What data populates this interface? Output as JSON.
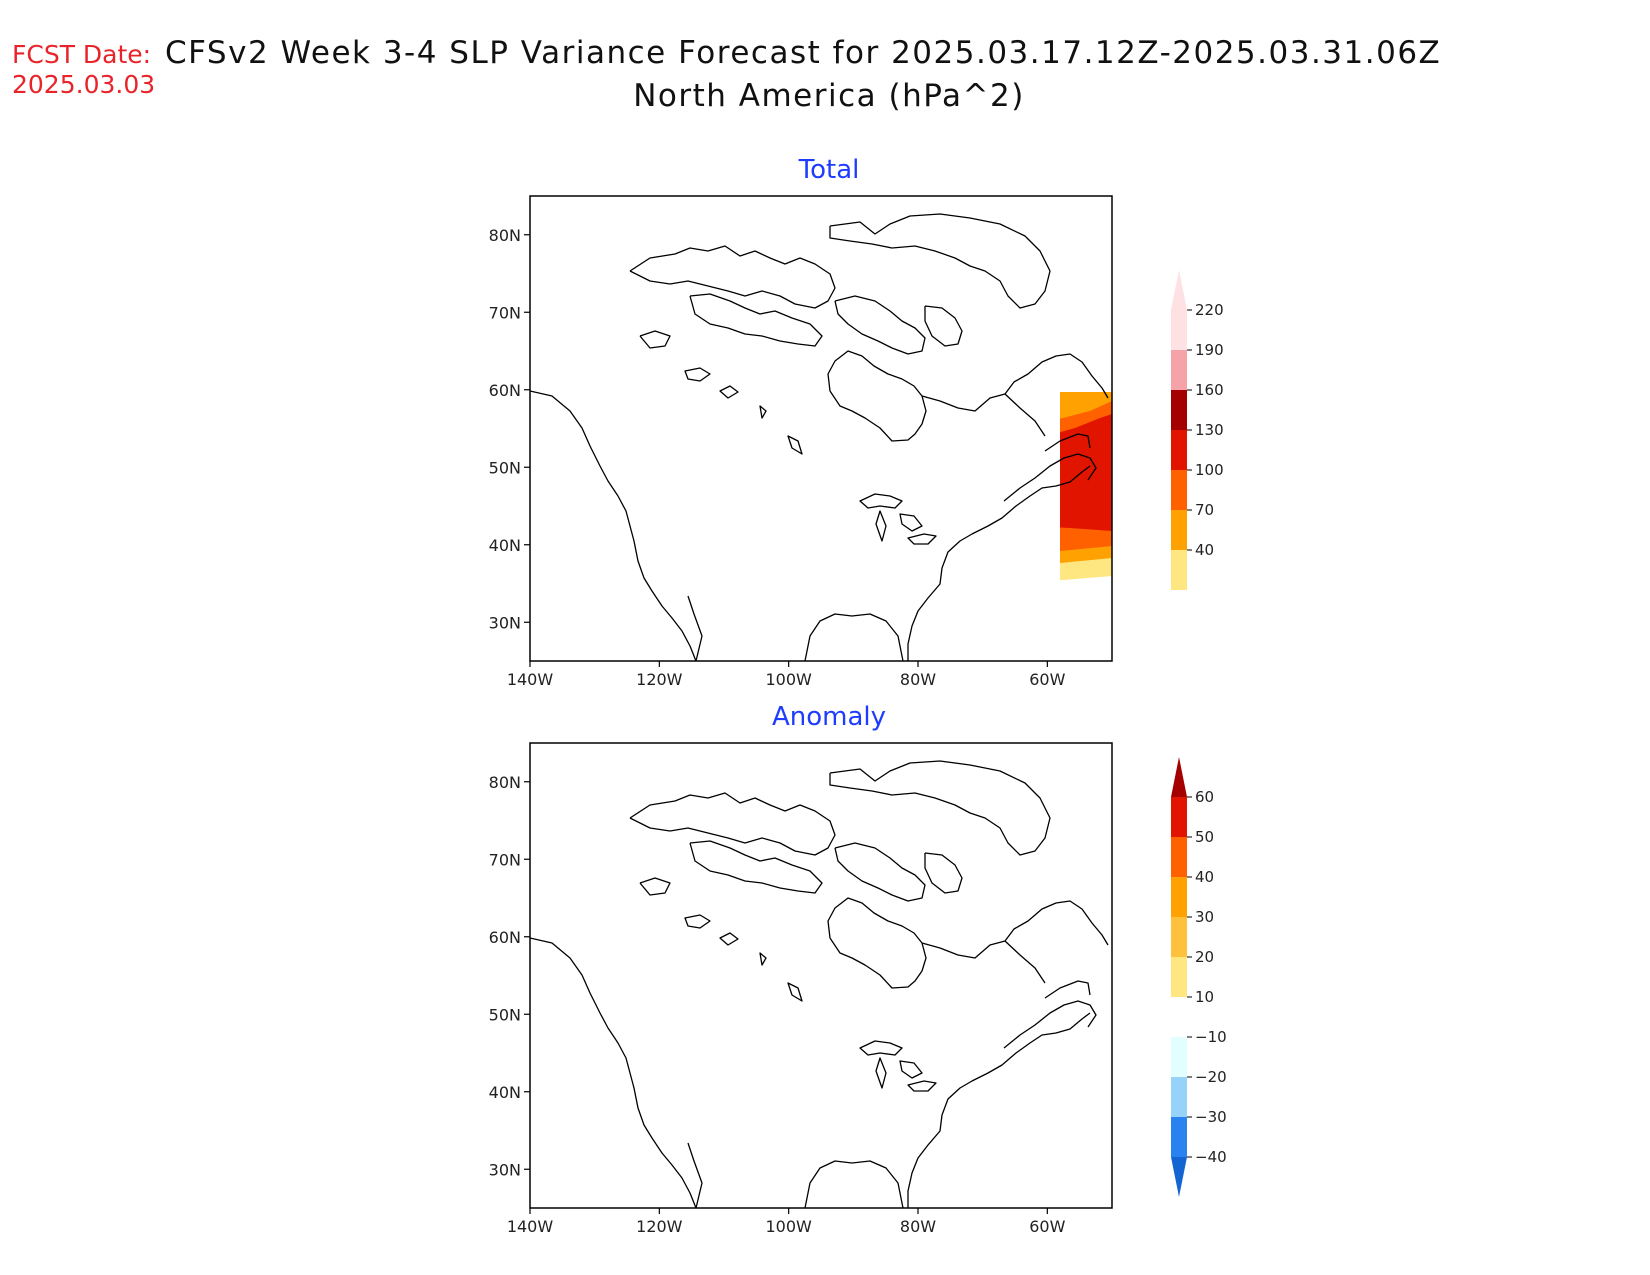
{
  "header": {
    "fcst_label": "FCST Date:",
    "fcst_date": "2025.03.03",
    "title_line1": "CFSv2 Week 3-4 SLP Variance Forecast for 2025.03.17.12Z-2025.03.31.06Z",
    "title_line2": "North America (hPa^2)"
  },
  "colors": {
    "title_red": "#e8242a",
    "panel_title_blue": "#1e3cff",
    "coastline": "#000000"
  },
  "axes": {
    "lat_labels": [
      "80N",
      "70N",
      "60N",
      "50N",
      "40N",
      "30N"
    ],
    "lat_values": [
      80,
      70,
      60,
      50,
      40,
      30
    ],
    "lon_labels": [
      "140W",
      "120W",
      "100W",
      "80W",
      "60W"
    ],
    "lon_values": [
      -140,
      -120,
      -100,
      -80,
      -60
    ],
    "lon_range": [
      -140,
      -50
    ],
    "lat_range": [
      25,
      85
    ]
  },
  "panels": [
    {
      "id": "total",
      "title": "Total",
      "colorbar": {
        "labels": [
          "220",
          "190",
          "160",
          "130",
          "100",
          "70",
          "40"
        ],
        "levels": [
          40,
          70,
          100,
          130,
          160,
          190,
          220
        ],
        "colors": [
          "#fee680",
          "#ffa100",
          "#ff6000",
          "#e11400",
          "#a50000",
          "#f5a3a8",
          "#fde1e3"
        ]
      }
    },
    {
      "id": "anomaly",
      "title": "Anomaly",
      "colorbar": {
        "labels": [
          "60",
          "50",
          "40",
          "30",
          "20",
          "10",
          "−10",
          "−20",
          "−30",
          "−40"
        ],
        "levels": [
          -40,
          -30,
          -20,
          -10,
          10,
          20,
          30,
          40,
          50,
          60
        ],
        "colors_low": [
          "#1464d2",
          "#2882f0",
          "#96d2fa",
          "#e1ffff"
        ],
        "colors_high": [
          "#ffffff",
          "#fee680",
          "#ffc03c",
          "#ffa100",
          "#ff6000",
          "#e11400",
          "#a50000"
        ]
      }
    }
  ]
}
